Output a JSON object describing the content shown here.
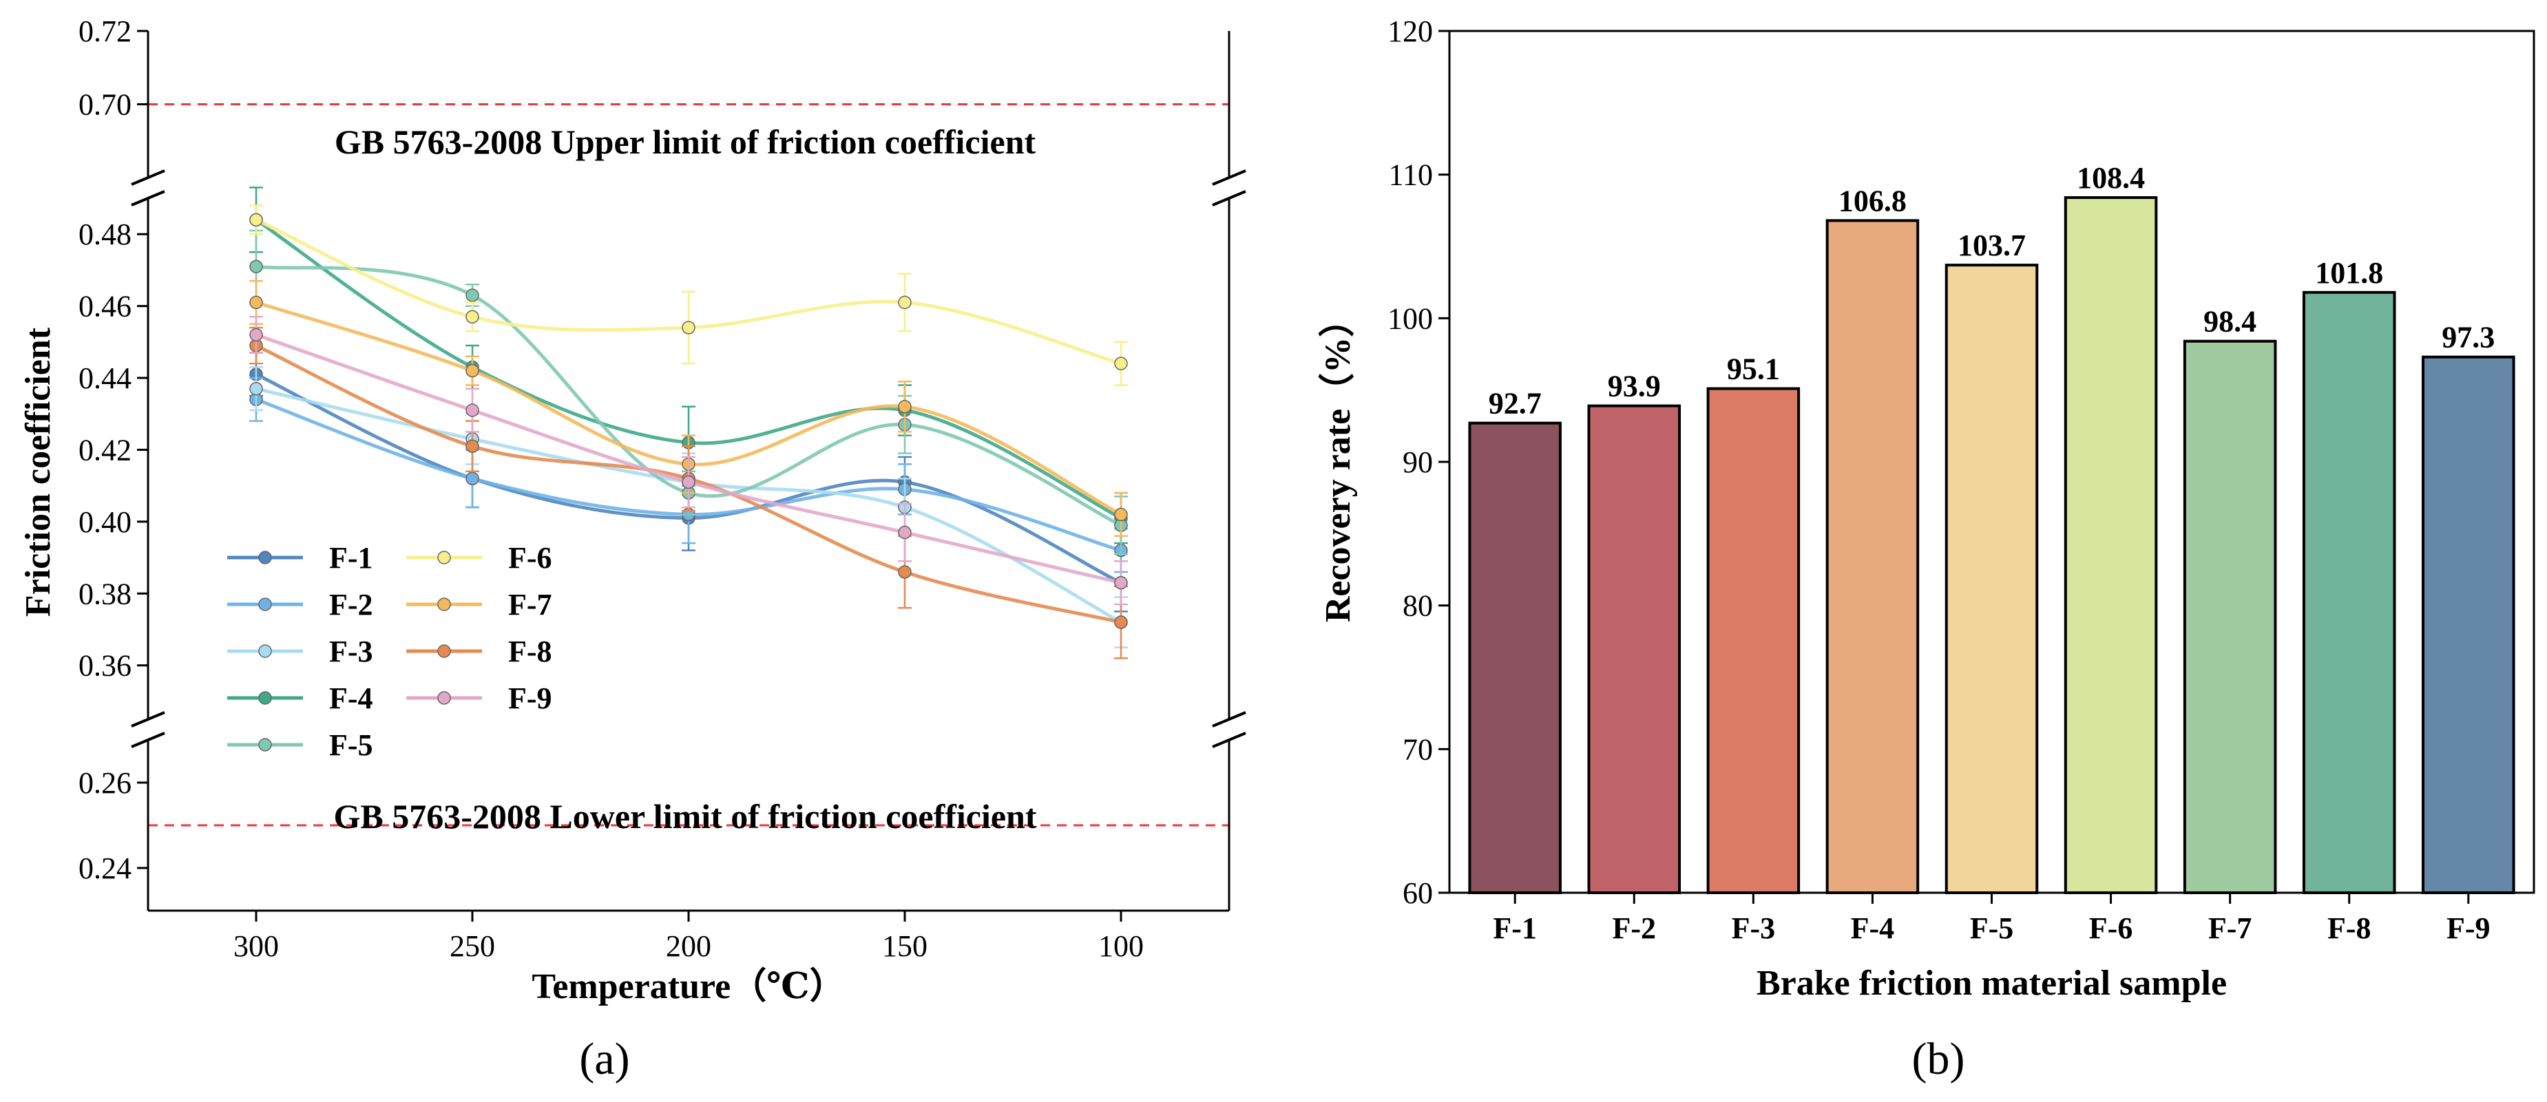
{
  "chart_data": [
    {
      "type": "line",
      "panel": "(a)",
      "xlabel": "Temperature（℃）",
      "ylabel": "Friction coefficient",
      "x": [
        300,
        250,
        200,
        150,
        100
      ],
      "x_ticks": [
        "300",
        "250",
        "200",
        "150",
        "100"
      ],
      "x_reversed": true,
      "xlim": [
        325,
        75
      ],
      "y_segments": [
        {
          "range": [
            0.23,
            0.27
          ],
          "ticks": [
            "0.24",
            "0.26"
          ]
        },
        {
          "range": [
            0.345,
            0.49
          ],
          "ticks": [
            "0.36",
            "0.38",
            "0.40",
            "0.42",
            "0.44",
            "0.46",
            "0.48"
          ]
        },
        {
          "range": [
            0.68,
            0.72
          ],
          "ticks": [
            "0.70",
            "0.72"
          ]
        }
      ],
      "reference_lines": [
        {
          "y": 0.7,
          "label": "GB 5763-2008 Upper limit of friction coefficient",
          "color": "#e8383d"
        },
        {
          "y": 0.25,
          "label": "GB 5763-2008 Lower limit of friction coefficient",
          "color": "#e8383d"
        }
      ],
      "series": [
        {
          "name": "F-1",
          "color": "#4f86c0",
          "values": [
            0.441,
            0.412,
            0.401,
            0.411,
            0.383
          ],
          "errors": [
            0.006,
            0.008,
            0.009,
            0.007,
            0.008
          ]
        },
        {
          "name": "F-2",
          "color": "#6fb3e6",
          "values": [
            0.434,
            0.412,
            0.402,
            0.409,
            0.392
          ],
          "errors": [
            0.006,
            0.008,
            0.008,
            0.007,
            0.006
          ]
        },
        {
          "name": "F-3",
          "color": "#a9dcf0",
          "values": [
            0.437,
            0.423,
            0.411,
            0.404,
            0.372
          ],
          "errors": [
            0.006,
            0.007,
            0.008,
            0.008,
            0.007
          ]
        },
        {
          "name": "F-4",
          "color": "#3ea888",
          "values": [
            0.484,
            0.443,
            0.422,
            0.431,
            0.401
          ],
          "errors": [
            0.009,
            0.006,
            0.01,
            0.007,
            0.007
          ]
        },
        {
          "name": "F-5",
          "color": "#80c8b2",
          "values": [
            0.471,
            0.463,
            0.408,
            0.427,
            0.399
          ],
          "errors": [
            0.01,
            0.003,
            0.006,
            0.008,
            0.008
          ]
        },
        {
          "name": "F-6",
          "color": "#f7ef8a",
          "values": [
            0.484,
            0.457,
            0.454,
            0.461,
            0.444
          ],
          "errors": [
            0.004,
            0.004,
            0.01,
            0.008,
            0.006
          ]
        },
        {
          "name": "F-7",
          "color": "#f4b95b",
          "values": [
            0.461,
            0.442,
            0.416,
            0.432,
            0.402
          ],
          "errors": [
            0.006,
            0.004,
            0.008,
            0.007,
            0.006
          ]
        },
        {
          "name": "F-8",
          "color": "#e68a4f",
          "values": [
            0.449,
            0.421,
            0.412,
            0.386,
            0.372
          ],
          "errors": [
            0.005,
            0.007,
            0.009,
            0.01,
            0.01
          ]
        },
        {
          "name": "F-9",
          "color": "#e3a7c9",
          "values": [
            0.452,
            0.431,
            0.411,
            0.397,
            0.383
          ],
          "errors": [
            0.005,
            0.006,
            0.007,
            0.008,
            0.006
          ]
        }
      ]
    },
    {
      "type": "bar",
      "panel": "(b)",
      "xlabel": "Brake friction material sample",
      "ylabel": "Recovery rate（%）",
      "ylim": [
        60,
        120
      ],
      "y_ticks": [
        "60",
        "70",
        "80",
        "90",
        "100",
        "110",
        "120"
      ],
      "categories": [
        "F-1",
        "F-2",
        "F-3",
        "F-4",
        "F-5",
        "F-6",
        "F-7",
        "F-8",
        "F-9"
      ],
      "values": [
        92.7,
        93.9,
        95.1,
        106.8,
        103.7,
        108.4,
        98.4,
        101.8,
        97.3
      ],
      "value_labels": [
        "92.7",
        "93.9",
        "95.1",
        "106.8",
        "103.7",
        "108.4",
        "98.4",
        "101.8",
        "97.3"
      ],
      "colors": [
        "#8c5260",
        "#c0646a",
        "#dc7b66",
        "#e8a97d",
        "#f1d59a",
        "#d8e59c",
        "#a0caa0",
        "#72b39b",
        "#6688a8"
      ]
    }
  ]
}
